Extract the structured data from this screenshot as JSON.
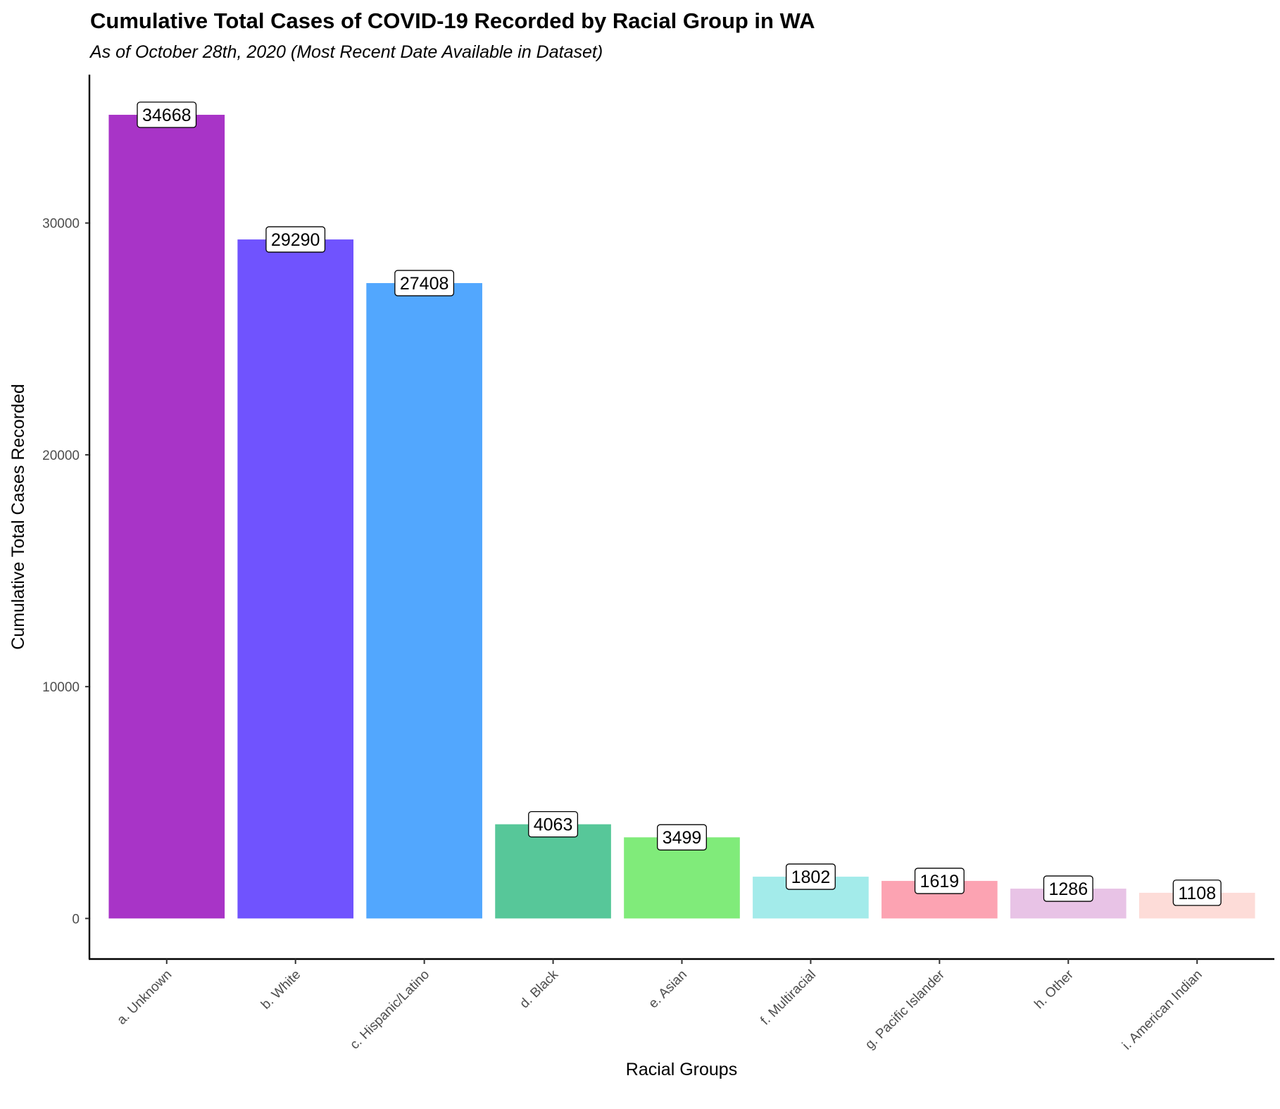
{
  "chart_data": {
    "type": "bar",
    "title": "Cumulative Total Cases of COVID-19 Recorded by Racial Group in WA",
    "subtitle": "As of October 28th, 2020 (Most Recent Date Available in Dataset)",
    "xlabel": "Racial Groups",
    "ylabel": "Cumulative Total Cases Recorded",
    "categories": [
      "a. Unknown",
      "b. White",
      "c. Hispanic/Latino",
      "d. Black",
      "e. Asian",
      "f. Multiracial",
      "g. Pacific Islander",
      "h. Other",
      "i. American Indian"
    ],
    "values": [
      34668,
      29290,
      27408,
      4063,
      3499,
      1802,
      1619,
      1286,
      1108
    ],
    "colors": [
      "#A834C7",
      "#7053FE",
      "#52A7FE",
      "#57C799",
      "#80EB7A",
      "#A3EBEA",
      "#FCA3B2",
      "#E8C3E6",
      "#FDDCD8"
    ],
    "ylim": [
      -1750,
      36400
    ],
    "yticks": [
      0,
      10000,
      20000,
      30000
    ],
    "ytick_labels": [
      "0",
      "10000",
      "20000",
      "30000"
    ],
    "grid": false,
    "legend": "none",
    "data_labels": true
  }
}
